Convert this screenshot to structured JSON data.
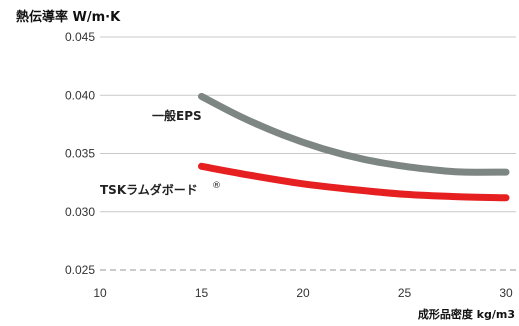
{
  "chart_data": {
    "type": "line",
    "ylabel": "熱伝導率 W/m·K",
    "xlabel": "成形品密度 kg/m3",
    "xlim": [
      10,
      30
    ],
    "ylim": [
      0.025,
      0.045
    ],
    "x_ticks": [
      "10",
      "15",
      "20",
      "25",
      "30"
    ],
    "y_ticks": [
      "0.045",
      "0.040",
      "0.035",
      "0.030",
      "0.025"
    ],
    "grid": "horizontal",
    "series": [
      {
        "name": "一般EPS",
        "color": "#7e8683",
        "x": [
          15,
          17,
          19,
          21,
          23,
          25,
          27,
          28,
          30
        ],
        "y": [
          0.0399,
          0.0381,
          0.0366,
          0.0354,
          0.0345,
          0.0339,
          0.0335,
          0.0334,
          0.0334
        ]
      },
      {
        "name": "TSKラムダボード",
        "name_mark": "®",
        "color": "#e62021",
        "x": [
          15,
          17.5,
          20,
          22.5,
          25,
          27.5,
          30
        ],
        "y": [
          0.0339,
          0.0331,
          0.0324,
          0.0319,
          0.0315,
          0.0313,
          0.0312
        ]
      }
    ]
  }
}
